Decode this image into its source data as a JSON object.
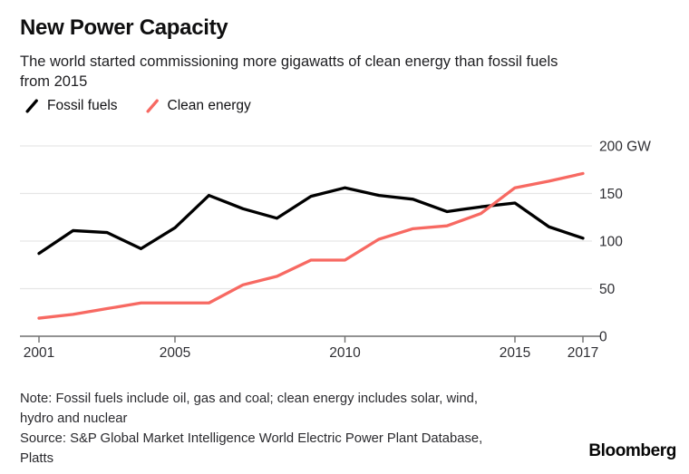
{
  "header": {
    "title": "New Power Capacity",
    "subtitle_line1": "The world started commissioning more gigawatts of clean energy than fossil fuels",
    "subtitle_line2": "from 2015"
  },
  "chart_data": {
    "type": "line",
    "title": "New Power Capacity",
    "subtitle": "The world started commissioning more gigawatts of clean energy than fossil fuels from 2015",
    "y_unit": "GW",
    "x": [
      2001,
      2002,
      2003,
      2004,
      2005,
      2006,
      2007,
      2008,
      2009,
      2010,
      2011,
      2012,
      2013,
      2014,
      2015,
      2016,
      2017
    ],
    "series": [
      {
        "name": "Fossil fuels",
        "color": "#000000",
        "values": [
          87,
          111,
          109,
          92,
          114,
          148,
          134,
          124,
          147,
          156,
          148,
          144,
          131,
          136,
          140,
          115,
          103
        ]
      },
      {
        "name": "Clean energy",
        "color": "#f76962",
        "values": [
          19,
          23,
          29,
          35,
          35,
          35,
          54,
          63,
          80,
          80,
          102,
          113,
          116,
          129,
          156,
          163,
          171
        ]
      }
    ],
    "xticks": [
      2001,
      2005,
      2010,
      2015,
      2017
    ],
    "yticks": [
      0,
      50,
      100,
      150,
      200
    ],
    "ytick_labels": [
      "0",
      "50",
      "100",
      "150",
      "200 GW"
    ],
    "xlim": [
      2001,
      2017
    ],
    "ylim": [
      0,
      215
    ],
    "grid": "horizontal",
    "legend_position": "top-left"
  },
  "colors": {
    "gridline": "#e6e6e6",
    "axis": "#6e6e6e",
    "tick_label": "#2e2e33"
  },
  "footer": {
    "note_line1": "Note: Fossil fuels include oil, gas and coal; clean energy includes solar, wind,",
    "note_line2": "hydro and nuclear",
    "source_line1": "Source: S&P Global Market Intelligence World Electric Power Plant Database,",
    "source_line2": "Platts",
    "brand": "Bloomberg"
  }
}
